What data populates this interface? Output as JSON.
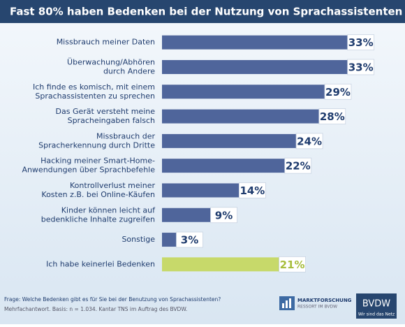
{
  "chart_data": {
    "type": "bar",
    "orientation": "horizontal",
    "title": "Fast 80% haben Bedenken bei der Nutzung von Sprachassistenten",
    "categories": [
      [
        "Missbrauch meiner Daten"
      ],
      [
        "Überwachung/Abhören",
        "durch Andere"
      ],
      [
        "Ich finde es komisch, mit einem",
        "Sprachassistenten zu sprechen"
      ],
      [
        "Das Gerät versteht meine",
        "Spracheingaben falsch"
      ],
      [
        "Missbrauch der",
        "Spracherkennung durch Dritte"
      ],
      [
        "Hacking meiner Smart-Home-",
        "Anwendungen über Sprachbefehle"
      ],
      [
        "Kontrollverlust meiner",
        "Kosten z.B. bei Online-Käufen"
      ],
      [
        "Kinder können leicht auf",
        "bedenkliche Inhalte zugreifen"
      ],
      [
        "Sonstige"
      ],
      [
        "Ich habe keinerlei Bedenken"
      ]
    ],
    "values": [
      33,
      33,
      29,
      28,
      24,
      22,
      14,
      9,
      3,
      21
    ],
    "value_labels": [
      "33%",
      "33%",
      "29%",
      "28%",
      "24%",
      "22%",
      "14%",
      "9%",
      "3%",
      "21%"
    ],
    "colors": [
      "#4f659b",
      "#4f659b",
      "#4f659b",
      "#4f659b",
      "#4f659b",
      "#4f659b",
      "#4f659b",
      "#4f659b",
      "#4f659b",
      "#c7d96a"
    ],
    "label_colors": [
      "#1f3c6e",
      "#1f3c6e",
      "#1f3c6e",
      "#1f3c6e",
      "#1f3c6e",
      "#1f3c6e",
      "#1f3c6e",
      "#1f3c6e",
      "#1f3c6e",
      "#a7bd3c"
    ],
    "xlim": [
      0,
      35
    ]
  },
  "footer": {
    "question": "Frage: Welche Bedenken gibt es für Sie bei der Benutzung von Sprachassistenten?",
    "note": "Mehrfachantwort. Basis: n = 1.034. Kantar TNS im Auftrag des BVDW.",
    "logo_title": "MARKTFORSCHUNG",
    "logo_subtitle": "RESSORT IM BVDW",
    "brand": "BVDW",
    "slogan": "Wir sind das Netz"
  }
}
